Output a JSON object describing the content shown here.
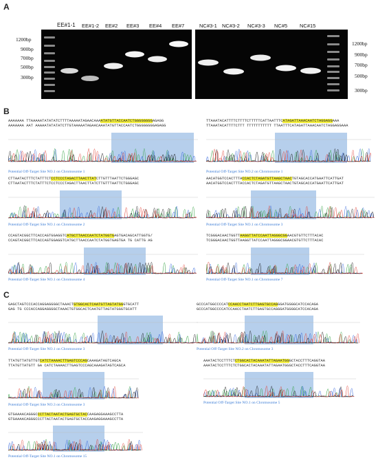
{
  "panels": {
    "a": "A",
    "b": "B",
    "c": "C"
  },
  "gel_left": {
    "lanes": [
      "EE#1-1",
      "EE#1-2",
      "EE#2",
      "EE#3",
      "EE#4",
      "EE#7"
    ],
    "ladder_labels": [
      "1200bp",
      "900bp",
      "700bp",
      "500bp",
      "300bp"
    ]
  },
  "gel_right": {
    "lanes": [
      "NC#3-1",
      "NC#3-2",
      "NC#3-3",
      "NC#5",
      "NC#15"
    ],
    "ladder_labels": [
      "1200bp",
      "900bp",
      "700bp",
      "500bp",
      "300bp"
    ]
  },
  "panel_b": [
    {
      "seq_top_pre": "AAAAAAA TTAAAAATATATATCTTTTAAAAATAGAACAAA",
      "seq_top_hl": "ATATGTTACCAATCTGGGGGGGG",
      "seq_top_post": "AGAGG",
      "seq_bottom": "AAAAAAA AAT AAAAATATATATCTTGTAAAAATAGAACAAATATGTTACCAATCTGGGGGGGGAGAGG",
      "caption": "Potential Off-Target Site NO.1 on Chromosome 1"
    },
    {
      "seq_top_pre": "TTAAATACATTTTCTTTTCTTTTTCATTAATTTC",
      "seq_top_hl": "ATAGATTAAACAATCTAGGAGG",
      "seq_top_post": "AAA",
      "seq_bottom": "TTAAATACATTTTCTTT TTTTTTTTTTT TTAATTTCATAGATTAAACAATCTAGGAGGAAA",
      "caption": "Potential Off-Target Site NO.2 on Chromosome 1"
    },
    {
      "seq_top_pre": "CTTAATACTTTCTATTTCT",
      "seq_top_hl": "CCTCCCTAGACTTAACTTAT",
      "seq_top_post": "CTTGTTTAATTCTGGGAGC",
      "seq_bottom": "CTTAATACTTTCTATTTCTCCTCCCTAGACTTAACTTATCTTGTTTAATTCTGGGAGC",
      "caption": "Potential Off-Target Site NO.1 on Chromosome 2"
    },
    {
      "seq_top_pre": "AACATGGTCCACTTTA",
      "seq_top_hl": "CCACTCTAGATGTTAAGCTAAC",
      "seq_top_post": "TGTAGCACCATGAATTCATTGAT",
      "seq_bottom": "AACATGGTCCACTTTACCACTCTAGATGTTAAGCTAACTGTAGCACCATGAATTCATTGAT",
      "caption": "Potential Off-Target Site NO.1 on Chromosome 3"
    },
    {
      "seq_top_pre": "CCAGTACGGCTTCACCAGTGGAGGTC",
      "seq_top_hl": "ATGCTTAACCAATCTATGGTG",
      "seq_top_post": "AGTGACAGCATTGGTG/",
      "seq_bottom": "CCAGTACGGCTTCACCAGTGGAGGTCATGCTTAACCAATCTATGGTGAGTGA TG CATTG AG",
      "caption": "Potential Off-Target Site NO.1 on Chromosome 4"
    },
    {
      "seq_top_pre": "TCGGGACAACTGGTT",
      "seq_top_hl": "AAGGTTATCCAATTAGGGCGG",
      "seq_top_post": "AACGTGTTCTTTACAC",
      "seq_bottom": "TCGGGACAACTGGTTAAGGTTATCCAATTAGGGCGGAACGTGTTCTTTACAC",
      "caption": "Potential Off-Target Site NO.1 on Chromosome 7"
    }
  ],
  "panel_c": [
    {
      "seq_top_pre": "GAGCTAGTCCCACCAGGAGGGGCTAAACT",
      "seq_top_hl": "GTGGCACTCAATGTTAGTATGG",
      "seq_top_post": "GTGCATT",
      "seq_bottom": "GAG TG CCCACCAGGAGGGGCTAAACTGTGGCACTCAATGTTAGTATGGGTGCATT",
      "caption": "Potential Off-Target Site NO.1 on Chromosome 3"
    },
    {
      "seq_top_pre": "GCCCATGGCCCCAT",
      "seq_top_hl": "CCAACCTAATCTTGAGTGCCAG",
      "seq_top_post": "GGATGGGGCATCCACAGA",
      "seq_bottom": "GCCCATGGCCCCATCCAACCTAATCTTGAGTGCCAGGGATGGGGCATCCACAGA",
      "caption": "Potential Off-Target Site NO.2 on Chromosome 3"
    },
    {
      "seq_top_pre": "TTATGTTATGTTGT",
      "seq_top_hl": "CATCTAAAACTTGAGTCCCAG",
      "seq_top_post": "CAAAGATAGTCAGCA",
      "seq_bottom": "TTATGTTATGTT GA CATCTAAAACTTGAGTCCCAGCAAAGATAGTCAGCA",
      "caption": "Potential Off-Target Site NO.3 on Chromosome 3"
    },
    {
      "seq_top_pre": "AAATACTCCTTTCT",
      "seq_top_hl": "CTGGCACTACAAATATTAGAATGG",
      "seq_top_post": "GCTACCTTTCAGGTAA",
      "seq_bottom": "AAATACTCCTTTCTCTGGCACTACAAATATTAGAATGGGCTACCTTTCAGGTAA",
      "caption": "Potential Off-Target Site NO.1 on Chromosome 5"
    },
    {
      "seq_top_pre": "GTGAAAACAGGGC",
      "seq_top_hl": "CCTTACTAATACTGAGTGCTAC",
      "seq_top_post": "CAAGAGGAAAGCCTTA",
      "seq_bottom": "GTGAAAACAGGGCCCTTACTAATACTGAGTGCTACCAAGAGGAAAGCCTTA",
      "caption": "Potential Off-Target Site NO.1 on Chromosome 15"
    }
  ],
  "colors": {
    "highlight": "#f4ef3c",
    "caption": "#3a7bd5",
    "shade": "#9dbfe6"
  }
}
